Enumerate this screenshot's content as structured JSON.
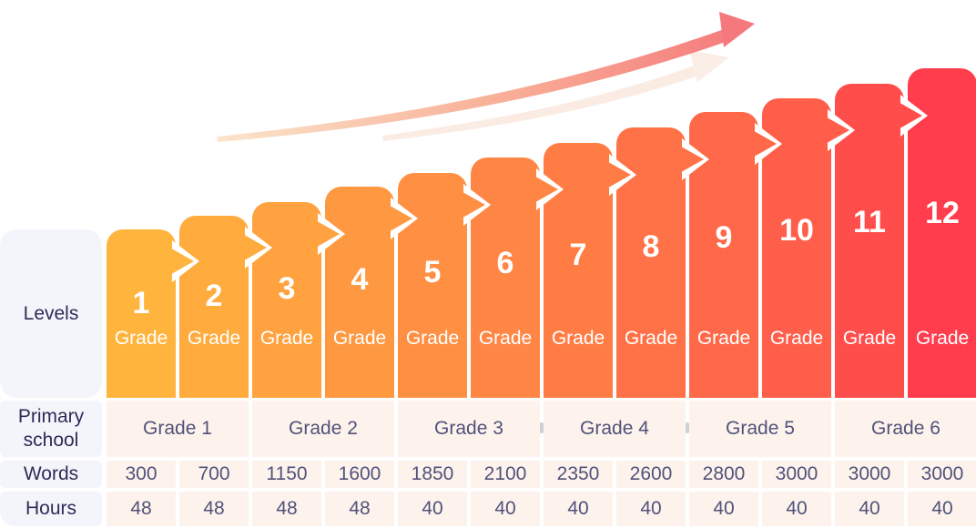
{
  "chart_data": {
    "type": "bar",
    "title": "",
    "categories": [
      "1",
      "2",
      "3",
      "4",
      "5",
      "6",
      "7",
      "8",
      "9",
      "10",
      "11",
      "12"
    ],
    "grade_label": "Grade",
    "row_labels": {
      "levels": "Levels",
      "primary_school": "Primary school",
      "words": "Words",
      "hours": "Hours"
    },
    "primary_school_groups": [
      "Grade 1",
      "Grade 2",
      "Grade 3",
      "Grade 4",
      "Grade 5",
      "Grade 6"
    ],
    "series": [
      {
        "name": "Words",
        "values": [
          300,
          700,
          1150,
          1600,
          1850,
          2100,
          2350,
          2600,
          2800,
          3000,
          3000,
          3000
        ]
      },
      {
        "name": "Hours",
        "values": [
          48,
          48,
          48,
          48,
          40,
          40,
          40,
          40,
          40,
          40,
          40,
          40
        ]
      }
    ],
    "bar_colors": [
      "#FFB43D",
      "#FFAB3E",
      "#FFA23F",
      "#FF9941",
      "#FF8F42",
      "#FF8644",
      "#FF7C45",
      "#FF7247",
      "#FF6848",
      "#FF5E4A",
      "#FF4D4B",
      "#FF3D4D"
    ],
    "accent_colors": {
      "arrow_gradient_start": "#FAE5CB",
      "arrow_gradient_end": "#F5797C",
      "ghost_arrow": "#FAECE3",
      "header_bg": "#F4F5FA",
      "cell_bg": "#FDF3EC",
      "header_text": "#2B2D58",
      "cell_text": "#51527A"
    },
    "legend": "none",
    "grid": "off"
  }
}
